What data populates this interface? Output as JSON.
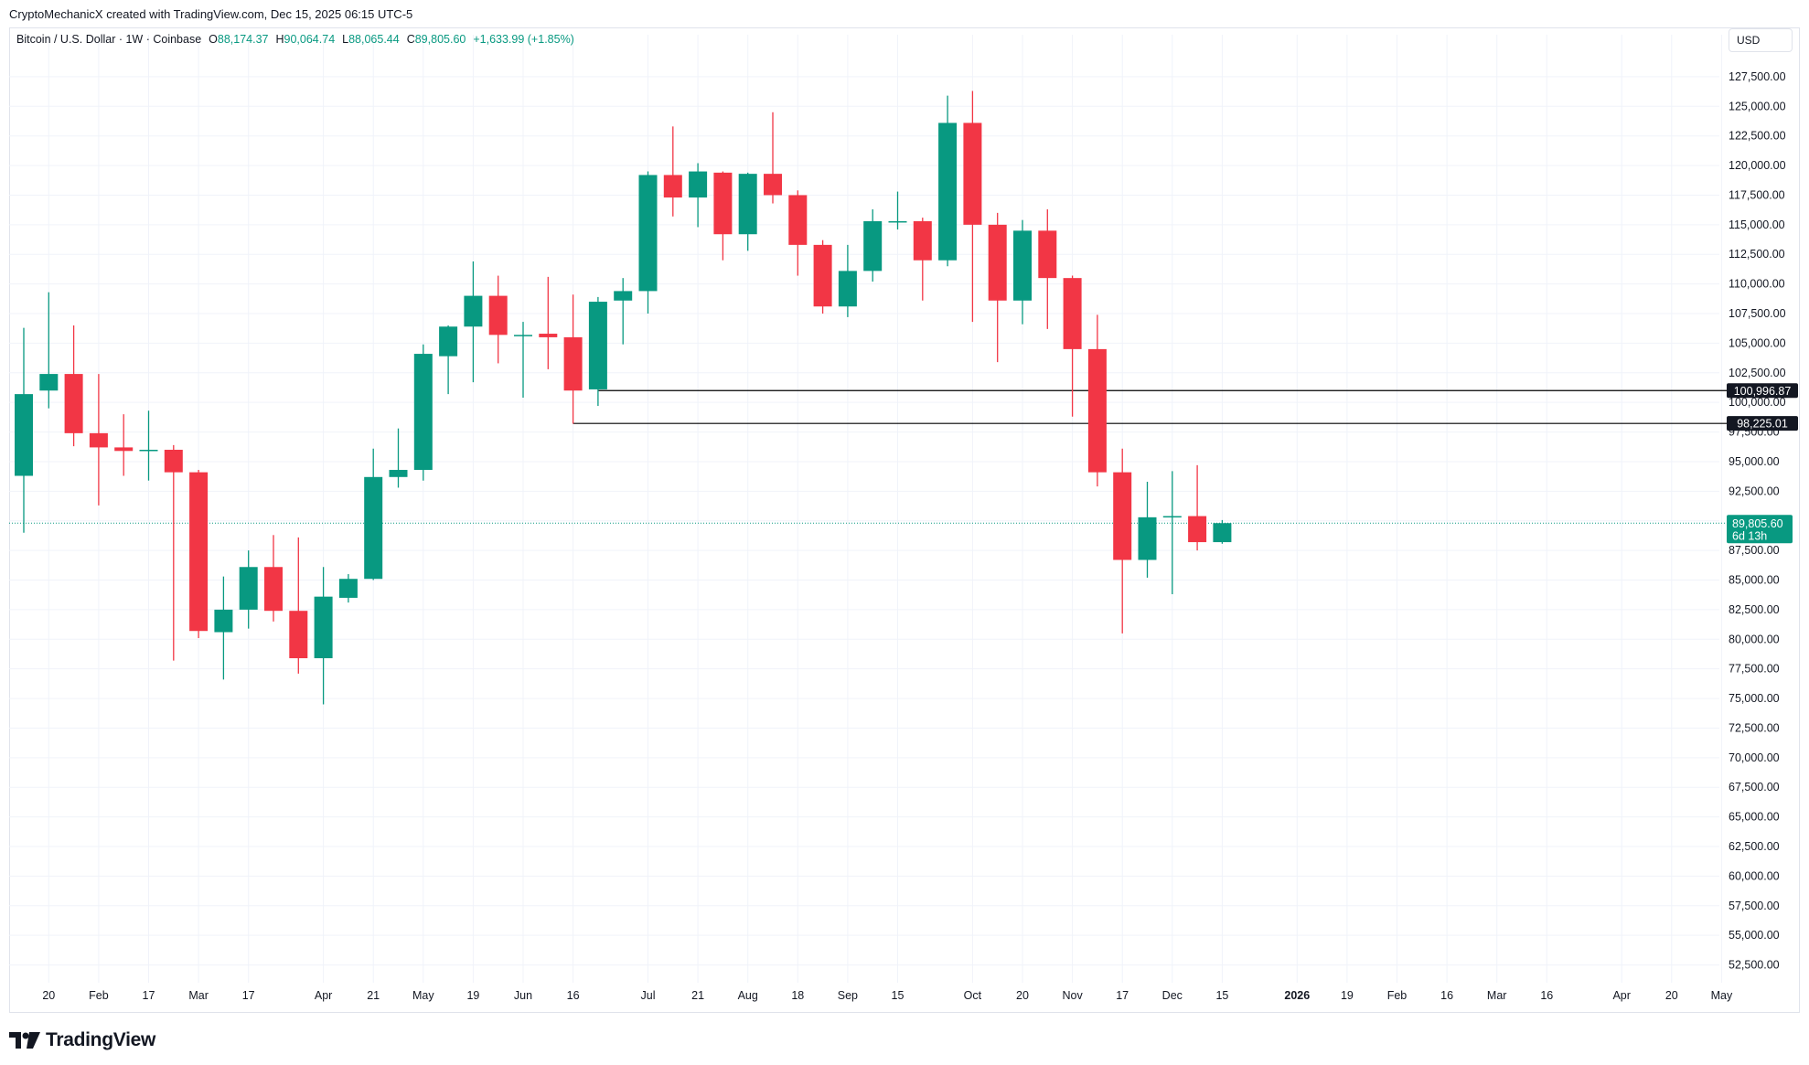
{
  "header": {
    "credit": "CryptoMechanicX created with TradingView.com, Dec 15, 2025 06:15 UTC-5"
  },
  "legend": {
    "symbol": "Bitcoin / U.S. Dollar · 1W · Coinbase",
    "o_label": "O",
    "o_value": "88,174.37",
    "h_label": "H",
    "h_value": "90,064.74",
    "l_label": "L",
    "l_value": "88,065.44",
    "c_label": "C",
    "c_value": "89,805.60",
    "change": "+1,633.99 (+1.85%)"
  },
  "currency_button": "USD",
  "brand": {
    "name": "TradingView",
    "logo_icon": "tradingview-logo-icon"
  },
  "colors": {
    "up": "#089981",
    "down": "#f23645",
    "grid": "#f0f3fa",
    "text": "#131722",
    "level_line": "#000000"
  },
  "chart_data": {
    "type": "candlestick",
    "title": "Bitcoin / U.S. Dollar · 1W · Coinbase",
    "timeframe": "1W",
    "exchange": "Coinbase",
    "y_axis": {
      "position": "right",
      "range": [
        51000,
        129500
      ],
      "ticks": [
        "52,500.00",
        "55,000.00",
        "57,500.00",
        "60,000.00",
        "62,500.00",
        "65,000.00",
        "67,500.00",
        "70,000.00",
        "72,500.00",
        "75,000.00",
        "77,500.00",
        "80,000.00",
        "82,500.00",
        "85,000.00",
        "87,500.00",
        "90,000.00",
        "92,500.00",
        "95,000.00",
        "97,500.00",
        "100,000.00",
        "102,500.00",
        "105,000.00",
        "107,500.00",
        "110,000.00",
        "112,500.00",
        "115,000.00",
        "117,500.00",
        "120,000.00",
        "122,500.00",
        "125,000.00",
        "127,500.00"
      ],
      "tick_values": [
        52500,
        55000,
        57500,
        60000,
        62500,
        65000,
        67500,
        70000,
        72500,
        75000,
        77500,
        80000,
        82500,
        85000,
        87500,
        90000,
        92500,
        95000,
        97500,
        100000,
        102500,
        105000,
        107500,
        110000,
        112500,
        115000,
        117500,
        120000,
        122500,
        125000,
        127500
      ]
    },
    "x_axis": {
      "ticks": [
        {
          "label": "20",
          "i": 1
        },
        {
          "label": "Feb",
          "i": 3
        },
        {
          "label": "17",
          "i": 5
        },
        {
          "label": "Mar",
          "i": 7
        },
        {
          "label": "17",
          "i": 9
        },
        {
          "label": "Apr",
          "i": 12
        },
        {
          "label": "21",
          "i": 14
        },
        {
          "label": "May",
          "i": 16
        },
        {
          "label": "19",
          "i": 18
        },
        {
          "label": "Jun",
          "i": 20
        },
        {
          "label": "16",
          "i": 22
        },
        {
          "label": "Jul",
          "i": 25
        },
        {
          "label": "21",
          "i": 27
        },
        {
          "label": "Aug",
          "i": 29
        },
        {
          "label": "18",
          "i": 31
        },
        {
          "label": "Sep",
          "i": 33
        },
        {
          "label": "15",
          "i": 35
        },
        {
          "label": "Oct",
          "i": 38
        },
        {
          "label": "20",
          "i": 40
        },
        {
          "label": "Nov",
          "i": 42
        },
        {
          "label": "17",
          "i": 44
        },
        {
          "label": "Dec",
          "i": 46
        },
        {
          "label": "15",
          "i": 48
        },
        {
          "label": "2026",
          "i": 51,
          "bold": true
        },
        {
          "label": "19",
          "i": 53
        },
        {
          "label": "Feb",
          "i": 55
        },
        {
          "label": "16",
          "i": 57
        },
        {
          "label": "Mar",
          "i": 59
        },
        {
          "label": "16",
          "i": 61
        },
        {
          "label": "Apr",
          "i": 64
        },
        {
          "label": "20",
          "i": 66
        },
        {
          "label": "May",
          "i": 68
        }
      ]
    },
    "candles": [
      {
        "o": 93800,
        "h": 106300,
        "l": 89000,
        "c": 100700
      },
      {
        "o": 101000,
        "h": 109300,
        "l": 99500,
        "c": 102400
      },
      {
        "o": 102400,
        "h": 106500,
        "l": 96300,
        "c": 97400
      },
      {
        "o": 97400,
        "h": 102400,
        "l": 91300,
        "c": 96200
      },
      {
        "o": 96200,
        "h": 99000,
        "l": 93800,
        "c": 95900
      },
      {
        "o": 95900,
        "h": 99300,
        "l": 93400,
        "c": 96000
      },
      {
        "o": 96000,
        "h": 96400,
        "l": 78200,
        "c": 94100
      },
      {
        "o": 94100,
        "h": 94300,
        "l": 80100,
        "c": 80700
      },
      {
        "o": 80600,
        "h": 85300,
        "l": 76600,
        "c": 82500
      },
      {
        "o": 82500,
        "h": 87500,
        "l": 80900,
        "c": 86100
      },
      {
        "o": 86100,
        "h": 88800,
        "l": 81500,
        "c": 82400
      },
      {
        "o": 82400,
        "h": 88600,
        "l": 77100,
        "c": 78400
      },
      {
        "o": 78400,
        "h": 86100,
        "l": 74500,
        "c": 83600
      },
      {
        "o": 83500,
        "h": 85500,
        "l": 83100,
        "c": 85100
      },
      {
        "o": 85100,
        "h": 96100,
        "l": 85000,
        "c": 93700
      },
      {
        "o": 93700,
        "h": 97800,
        "l": 92800,
        "c": 94300
      },
      {
        "o": 94300,
        "h": 104900,
        "l": 93400,
        "c": 104100
      },
      {
        "o": 103900,
        "h": 106500,
        "l": 100700,
        "c": 106400
      },
      {
        "o": 106400,
        "h": 111900,
        "l": 101700,
        "c": 109000
      },
      {
        "o": 109000,
        "h": 110700,
        "l": 103300,
        "c": 105700
      },
      {
        "o": 105600,
        "h": 106800,
        "l": 100400,
        "c": 105700
      },
      {
        "o": 105800,
        "h": 110600,
        "l": 102800,
        "c": 105500
      },
      {
        "o": 105500,
        "h": 109100,
        "l": 98200,
        "c": 101000
      },
      {
        "o": 101100,
        "h": 108900,
        "l": 99700,
        "c": 108500
      },
      {
        "o": 108600,
        "h": 110500,
        "l": 104900,
        "c": 109400
      },
      {
        "o": 109400,
        "h": 119500,
        "l": 107500,
        "c": 119200
      },
      {
        "o": 119200,
        "h": 123300,
        "l": 115700,
        "c": 117300
      },
      {
        "o": 117300,
        "h": 120200,
        "l": 114800,
        "c": 119500
      },
      {
        "o": 119400,
        "h": 119500,
        "l": 112000,
        "c": 114200
      },
      {
        "o": 114200,
        "h": 119400,
        "l": 112800,
        "c": 119300
      },
      {
        "o": 119300,
        "h": 124500,
        "l": 116800,
        "c": 117500
      },
      {
        "o": 117500,
        "h": 117900,
        "l": 110700,
        "c": 113300
      },
      {
        "o": 113300,
        "h": 113700,
        "l": 107500,
        "c": 108100
      },
      {
        "o": 108100,
        "h": 113300,
        "l": 107200,
        "c": 111100
      },
      {
        "o": 111100,
        "h": 116300,
        "l": 110200,
        "c": 115300
      },
      {
        "o": 115300,
        "h": 117800,
        "l": 114600,
        "c": 115300
      },
      {
        "o": 115300,
        "h": 115600,
        "l": 108600,
        "c": 112000
      },
      {
        "o": 112000,
        "h": 125900,
        "l": 111500,
        "c": 123600
      },
      {
        "o": 123600,
        "h": 126300,
        "l": 106800,
        "c": 115000
      },
      {
        "o": 115000,
        "h": 116000,
        "l": 103400,
        "c": 108600
      },
      {
        "o": 108600,
        "h": 115400,
        "l": 106600,
        "c": 114500
      },
      {
        "o": 114500,
        "h": 116300,
        "l": 106200,
        "c": 110500
      },
      {
        "o": 110500,
        "h": 110700,
        "l": 98800,
        "c": 104500
      },
      {
        "o": 104500,
        "h": 107400,
        "l": 92900,
        "c": 94100
      },
      {
        "o": 94100,
        "h": 96100,
        "l": 80500,
        "c": 86700
      },
      {
        "o": 86700,
        "h": 93300,
        "l": 85200,
        "c": 90300
      },
      {
        "o": 90300,
        "h": 94200,
        "l": 83800,
        "c": 90400
      },
      {
        "o": 90400,
        "h": 94700,
        "l": 87500,
        "c": 88200
      },
      {
        "o": 88200,
        "h": 90065,
        "l": 88065,
        "c": 89806
      }
    ],
    "horizontal_levels": [
      {
        "value": 100996.87,
        "label": "100,996.87",
        "start_i": 23
      },
      {
        "value": 98225.01,
        "label": "98,225.01",
        "start_i": 22
      }
    ],
    "last_price": {
      "value": 89805.6,
      "label": "89,805.60",
      "countdown": "6d 13h"
    }
  }
}
